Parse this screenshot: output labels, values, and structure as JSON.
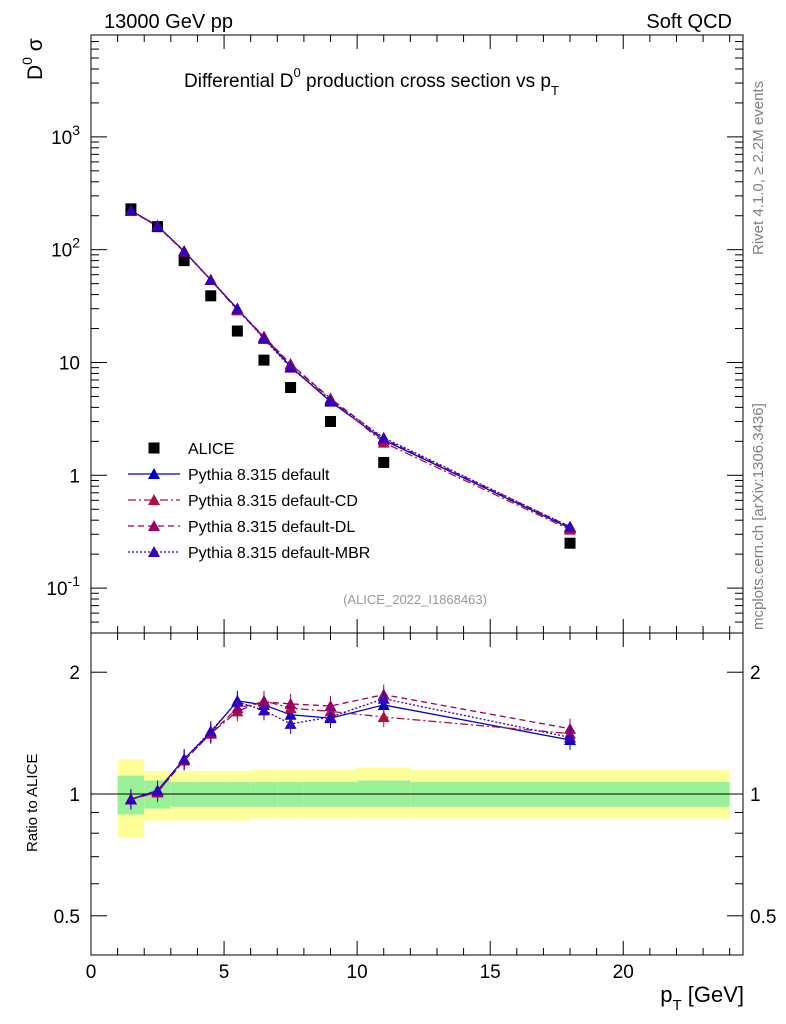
{
  "header": {
    "energy_label": "13000 GeV pp",
    "process_label": "Soft QCD",
    "title_main": "Differential D",
    "title_sup": "0",
    "title_rest": " production cross section vs p",
    "title_sub": "T",
    "ylabel_main": "D",
    "ylabel_sup": "0",
    "ylabel_sigma": " σ",
    "side_text_1": "Rivet 4.1.0, ≥ 2.2M events",
    "side_text_2": "mcplots.cern.ch [arXiv:1306.3436]",
    "analysis_tag": "(ALICE_2022_I1868463)",
    "ratio_ylabel": "Ratio to ALICE",
    "xlabel_main": "p",
    "xlabel_sub": "T",
    "xlabel_unit": " [GeV]"
  },
  "colors": {
    "alice": "#000000",
    "default": "#0000cc",
    "cd": "#b0103a",
    "dl": "#990066",
    "mbr": "#3300bb",
    "band_inner": "#99f099",
    "band_outer": "#ffff99",
    "side_text": "#808080",
    "analysis_tag": "#999999"
  },
  "chart_data": [
    {
      "type": "scatter",
      "panel": "main",
      "yscale": "log",
      "xlim": [
        0,
        24.5
      ],
      "ylim": [
        0.04,
        8000
      ],
      "ytick_labels": [
        "10^{-1}",
        "1",
        "10",
        "10^{2}",
        "10^{3}"
      ],
      "ytick_values": [
        0.1,
        1,
        10,
        100,
        1000
      ],
      "legend_position": "bottom-left",
      "series": [
        {
          "name": "ALICE",
          "style": "square",
          "x": [
            1.5,
            2.5,
            3.5,
            4.5,
            5.5,
            6.5,
            7.5,
            9,
            11,
            18
          ],
          "y": [
            230,
            160,
            80,
            39,
            19,
            10.5,
            6,
            3,
            1.3,
            0.25
          ]
        },
        {
          "name": "Pythia 8.315 default",
          "style": "solid",
          "x": [
            1.5,
            2.5,
            3.5,
            4.5,
            5.5,
            6.5,
            7.5,
            9,
            11,
            18
          ],
          "y": [
            222,
            163,
            97,
            54,
            30,
            16.5,
            9.2,
            4.5,
            2.05,
            0.34
          ]
        },
        {
          "name": "Pythia 8.315 default-CD",
          "style": "dashdot",
          "x": [
            1.5,
            2.5,
            3.5,
            4.5,
            5.5,
            6.5,
            7.5,
            9,
            11,
            18
          ],
          "y": [
            222,
            162,
            97,
            54,
            29,
            16.8,
            9.6,
            4.7,
            1.95,
            0.33
          ]
        },
        {
          "name": "Pythia 8.315 default-DL",
          "style": "dashed",
          "x": [
            1.5,
            2.5,
            3.5,
            4.5,
            5.5,
            6.5,
            7.5,
            9,
            11,
            18
          ],
          "y": [
            221,
            161,
            96,
            54,
            29.5,
            17,
            9.7,
            4.8,
            2.1,
            0.35
          ]
        },
        {
          "name": "Pythia 8.315 default-MBR",
          "style": "dotted",
          "x": [
            1.5,
            2.5,
            3.5,
            4.5,
            5.5,
            6.5,
            7.5,
            9,
            11,
            18
          ],
          "y": [
            222,
            162,
            97,
            54,
            30,
            16.2,
            9.0,
            4.6,
            2.15,
            0.35
          ]
        }
      ]
    },
    {
      "type": "line",
      "panel": "ratio",
      "yscale": "log",
      "xlim": [
        0,
        24.5
      ],
      "ylim": [
        0.4,
        2.5
      ],
      "ylabel": "Ratio to ALICE",
      "xlabel": "p_T [GeV]",
      "xtick_values": [
        0,
        5,
        10,
        15,
        20
      ],
      "xtick_labels": [
        "0",
        "5",
        "10",
        "15",
        "20"
      ],
      "ytick_values": [
        0.5,
        1,
        2
      ],
      "ytick_labels": [
        "0.5",
        "1",
        "2"
      ],
      "bands": {
        "edges": [
          1,
          2,
          3,
          4,
          5,
          6,
          7,
          8,
          10,
          12,
          24
        ],
        "inner_low": [
          0.89,
          0.92,
          0.93,
          0.93,
          0.93,
          0.93,
          0.93,
          0.93,
          0.93,
          0.93
        ],
        "inner_high": [
          1.11,
          1.08,
          1.07,
          1.07,
          1.07,
          1.07,
          1.07,
          1.07,
          1.08,
          1.07
        ],
        "outer_low": [
          0.78,
          0.86,
          0.86,
          0.86,
          0.86,
          0.87,
          0.87,
          0.87,
          0.87,
          0.87
        ],
        "outer_high": [
          1.22,
          1.14,
          1.14,
          1.14,
          1.14,
          1.15,
          1.15,
          1.15,
          1.16,
          1.15
        ]
      },
      "x": [
        1.5,
        2.5,
        3.5,
        4.5,
        5.5,
        6.5,
        7.5,
        9,
        11,
        18
      ],
      "series": [
        {
          "name": "Pythia 8.315 default",
          "values": [
            0.97,
            1.02,
            1.22,
            1.42,
            1.7,
            1.66,
            1.57,
            1.54,
            1.66,
            1.36
          ]
        },
        {
          "name": "Pythia 8.315 default-CD",
          "values": [
            0.97,
            1.01,
            1.21,
            1.41,
            1.6,
            1.7,
            1.63,
            1.6,
            1.55,
            1.41
          ]
        },
        {
          "name": "Pythia 8.315 default-DL",
          "values": [
            0.97,
            1.01,
            1.21,
            1.41,
            1.63,
            1.69,
            1.67,
            1.65,
            1.76,
            1.45
          ]
        },
        {
          "name": "Pythia 8.315 default-MBR",
          "values": [
            0.97,
            1.02,
            1.22,
            1.43,
            1.69,
            1.61,
            1.49,
            1.55,
            1.72,
            1.38
          ]
        }
      ]
    }
  ]
}
